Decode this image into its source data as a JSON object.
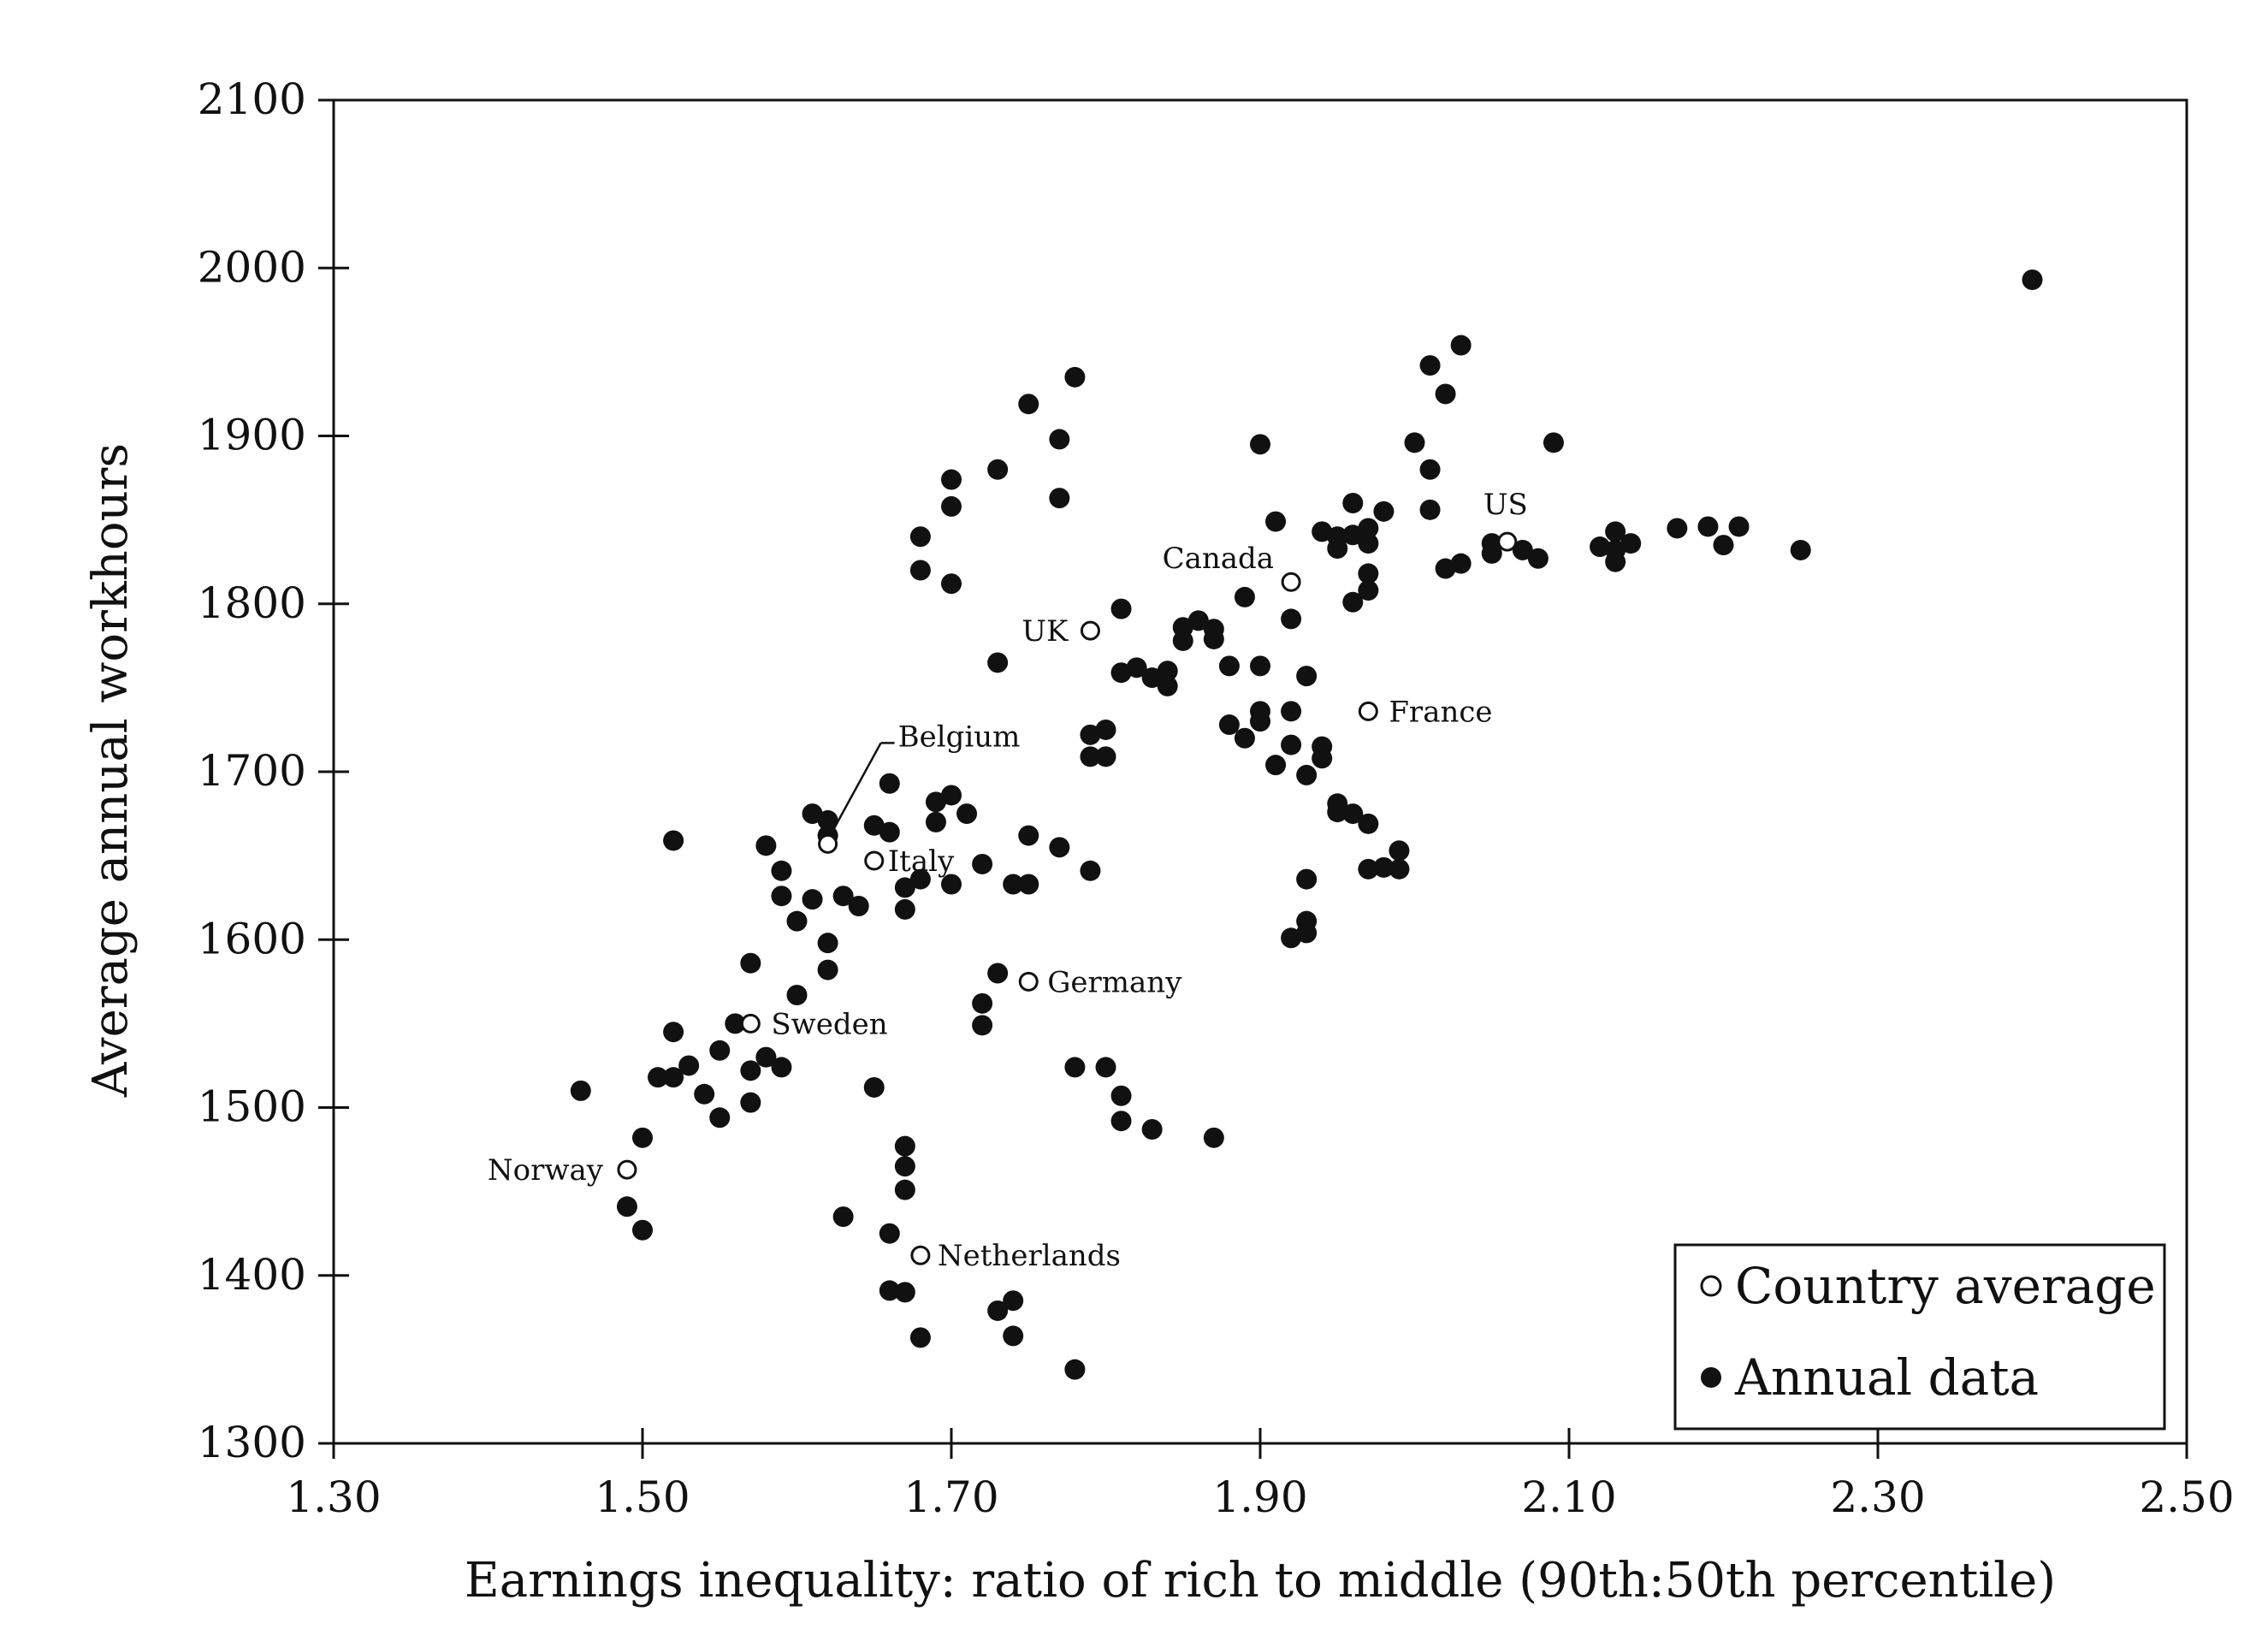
{
  "chart_data": {
    "type": "scatter",
    "xlabel": "Earnings inequality: ratio of rich to middle (90th:50th percentile)",
    "ylabel": "Average annual workhours",
    "xlim": [
      1.3,
      2.5
    ],
    "ylim": [
      1300,
      2100
    ],
    "x_ticks": [
      "1.30",
      "1.50",
      "1.70",
      "1.90",
      "2.10",
      "2.30",
      "2.50"
    ],
    "y_ticks": [
      "1300",
      "1400",
      "1500",
      "1600",
      "1700",
      "1800",
      "1900",
      "2000",
      "2100"
    ],
    "legend": {
      "position": "bottom-right",
      "entries": [
        "Country average",
        "Annual data"
      ]
    },
    "series": [
      {
        "name": "Country average",
        "marker": "open-circle",
        "points": [
          {
            "label": "Norway",
            "x": 1.49,
            "y": 1463
          },
          {
            "label": "Sweden",
            "x": 1.57,
            "y": 1550
          },
          {
            "label": "Belgium",
            "x": 1.62,
            "y": 1657
          },
          {
            "label": "Italy",
            "x": 1.65,
            "y": 1647
          },
          {
            "label": "Netherlands",
            "x": 1.68,
            "y": 1412
          },
          {
            "label": "Germany",
            "x": 1.75,
            "y": 1575
          },
          {
            "label": "UK",
            "x": 1.79,
            "y": 1784
          },
          {
            "label": "Canada",
            "x": 1.92,
            "y": 1813
          },
          {
            "label": "France",
            "x": 1.97,
            "y": 1736
          },
          {
            "label": "US",
            "x": 2.06,
            "y": 1837
          }
        ]
      },
      {
        "name": "Annual data",
        "marker": "filled-circle",
        "points": [
          [
            1.46,
            1510
          ],
          [
            1.49,
            1441
          ],
          [
            1.5,
            1427
          ],
          [
            1.5,
            1482
          ],
          [
            1.51,
            1518
          ],
          [
            1.52,
            1659
          ],
          [
            1.52,
            1545
          ],
          [
            1.52,
            1518
          ],
          [
            1.53,
            1525
          ],
          [
            1.54,
            1508
          ],
          [
            1.55,
            1534
          ],
          [
            1.55,
            1494
          ],
          [
            1.56,
            1550
          ],
          [
            1.57,
            1586
          ],
          [
            1.57,
            1522
          ],
          [
            1.57,
            1503
          ],
          [
            1.58,
            1530
          ],
          [
            1.58,
            1656
          ],
          [
            1.59,
            1524
          ],
          [
            1.59,
            1641
          ],
          [
            1.59,
            1626
          ],
          [
            1.6,
            1611
          ],
          [
            1.6,
            1567
          ],
          [
            1.61,
            1675
          ],
          [
            1.61,
            1624
          ],
          [
            1.62,
            1598
          ],
          [
            1.62,
            1582
          ],
          [
            1.62,
            1662
          ],
          [
            1.62,
            1671
          ],
          [
            1.63,
            1626
          ],
          [
            1.64,
            1620
          ],
          [
            1.65,
            1668
          ],
          [
            1.65,
            1512
          ],
          [
            1.66,
            1664
          ],
          [
            1.66,
            1693
          ],
          [
            1.63,
            1435
          ],
          [
            1.67,
            1477
          ],
          [
            1.67,
            1465
          ],
          [
            1.67,
            1451
          ],
          [
            1.66,
            1425
          ],
          [
            1.66,
            1391
          ],
          [
            1.67,
            1390
          ],
          [
            1.68,
            1363
          ],
          [
            1.67,
            1631
          ],
          [
            1.67,
            1618
          ],
          [
            1.68,
            1636
          ],
          [
            1.69,
            1670
          ],
          [
            1.69,
            1682
          ],
          [
            1.7,
            1633
          ],
          [
            1.7,
            1686
          ],
          [
            1.71,
            1675
          ],
          [
            1.72,
            1645
          ],
          [
            1.72,
            1562
          ],
          [
            1.72,
            1549
          ],
          [
            1.73,
            1580
          ],
          [
            1.73,
            1379
          ],
          [
            1.74,
            1385
          ],
          [
            1.74,
            1364
          ],
          [
            1.74,
            1633
          ],
          [
            1.75,
            1662
          ],
          [
            1.75,
            1633
          ],
          [
            1.77,
            1655
          ],
          [
            1.78,
            1524
          ],
          [
            1.78,
            1344
          ],
          [
            1.79,
            1641
          ],
          [
            1.8,
            1524
          ],
          [
            1.81,
            1507
          ],
          [
            1.81,
            1492
          ],
          [
            1.83,
            1487
          ],
          [
            1.87,
            1482
          ],
          [
            1.68,
            1840
          ],
          [
            1.68,
            1820
          ],
          [
            1.7,
            1874
          ],
          [
            1.7,
            1858
          ],
          [
            1.7,
            1812
          ],
          [
            1.73,
            1880
          ],
          [
            1.73,
            1765
          ],
          [
            1.75,
            1919
          ],
          [
            1.77,
            1898
          ],
          [
            1.77,
            1863
          ],
          [
            1.78,
            1935
          ],
          [
            1.79,
            1709
          ],
          [
            1.79,
            1722
          ],
          [
            1.8,
            1709
          ],
          [
            1.8,
            1725
          ],
          [
            1.81,
            1759
          ],
          [
            1.81,
            1797
          ],
          [
            1.82,
            1762
          ],
          [
            1.83,
            1756
          ],
          [
            1.84,
            1751
          ],
          [
            1.84,
            1760
          ],
          [
            1.85,
            1786
          ],
          [
            1.85,
            1778
          ],
          [
            1.86,
            1790
          ],
          [
            1.87,
            1779
          ],
          [
            1.87,
            1785
          ],
          [
            1.88,
            1763
          ],
          [
            1.88,
            1728
          ],
          [
            1.89,
            1804
          ],
          [
            1.89,
            1720
          ],
          [
            1.9,
            1736
          ],
          [
            1.9,
            1763
          ],
          [
            1.9,
            1730
          ],
          [
            1.91,
            1704
          ],
          [
            1.92,
            1736
          ],
          [
            1.92,
            1716
          ],
          [
            1.9,
            1895
          ],
          [
            1.91,
            1849
          ],
          [
            1.92,
            1791
          ],
          [
            1.93,
            1757
          ],
          [
            1.93,
            1698
          ],
          [
            1.94,
            1708
          ],
          [
            1.94,
            1715
          ],
          [
            1.94,
            1843
          ],
          [
            1.95,
            1840
          ],
          [
            1.95,
            1833
          ],
          [
            1.96,
            1841
          ],
          [
            1.96,
            1801
          ],
          [
            1.96,
            1860
          ],
          [
            1.97,
            1845
          ],
          [
            1.97,
            1836
          ],
          [
            1.97,
            1818
          ],
          [
            1.97,
            1808
          ],
          [
            1.98,
            1855
          ],
          [
            1.95,
            1681
          ],
          [
            1.95,
            1676
          ],
          [
            1.96,
            1675
          ],
          [
            1.97,
            1669
          ],
          [
            1.97,
            1642
          ],
          [
            1.98,
            1643
          ],
          [
            1.99,
            1653
          ],
          [
            1.99,
            1642
          ],
          [
            1.93,
            1636
          ],
          [
            1.93,
            1611
          ],
          [
            1.93,
            1604
          ],
          [
            1.92,
            1601
          ],
          [
            2.0,
            1896
          ],
          [
            2.01,
            1880
          ],
          [
            2.01,
            1856
          ],
          [
            2.01,
            1942
          ],
          [
            2.02,
            1925
          ],
          [
            2.03,
            1954
          ],
          [
            2.02,
            1821
          ],
          [
            2.03,
            1824
          ],
          [
            2.05,
            1830
          ],
          [
            2.05,
            1836
          ],
          [
            2.07,
            1832
          ],
          [
            2.08,
            1827
          ],
          [
            2.09,
            1896
          ],
          [
            2.12,
            1834
          ],
          [
            2.13,
            1843
          ],
          [
            2.13,
            1825
          ],
          [
            2.13,
            1832
          ],
          [
            2.14,
            1836
          ],
          [
            2.17,
            1845
          ],
          [
            2.19,
            1846
          ],
          [
            2.2,
            1835
          ],
          [
            2.21,
            1846
          ],
          [
            2.25,
            1832
          ],
          [
            2.4,
            1993
          ]
        ]
      }
    ]
  }
}
